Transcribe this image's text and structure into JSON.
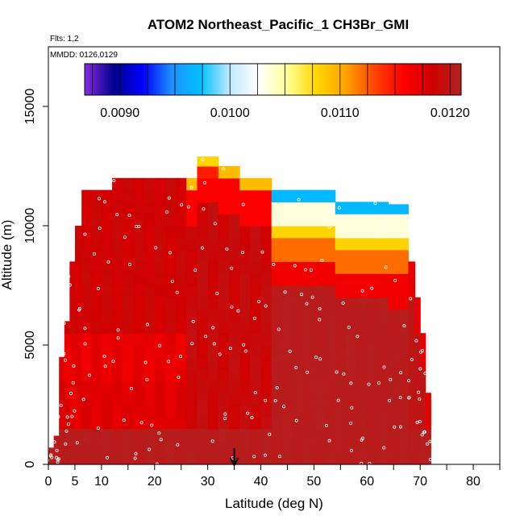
{
  "chart_data": {
    "type": "heatmap",
    "title": "ATOM2 Northeast_Pacific_1 CH3Br_GMI",
    "flights_label": "Flts: 1,2",
    "dates_label": "MMDD: 0126,0129",
    "xlabel": "Latitude (deg N)",
    "ylabel": "Altitude (m)",
    "xlim": [
      0,
      85
    ],
    "ylim": [
      0,
      17500
    ],
    "x_ticks": [
      0,
      5,
      10,
      20,
      30,
      40,
      50,
      60,
      70,
      80
    ],
    "x_minor_ticks": [
      15,
      25,
      35,
      45,
      55,
      65,
      75,
      85
    ],
    "y_ticks": [
      0,
      5000,
      10000,
      15000
    ],
    "colorbar": {
      "range": [
        0.00868,
        0.0121
      ],
      "tick_values": [
        0.009,
        0.01,
        0.011,
        0.012
      ],
      "tick_labels": [
        "0.0090",
        "0.0100",
        "0.0110",
        "0.0120"
      ],
      "colors": [
        "#8a2be2",
        "#00008b",
        "#0000ff",
        "#1e90ff",
        "#00bfff",
        "#bfe9ff",
        "#ffffff",
        "#ffff99",
        "#ffd700",
        "#ffa500",
        "#ff4500",
        "#ff0000",
        "#d00000",
        "#b22222"
      ]
    },
    "marker_latitude": 35,
    "profiles": [
      {
        "lat": 0.5,
        "top": 700,
        "pattern": "A"
      },
      {
        "lat": 1.5,
        "top": 1200,
        "pattern": "A"
      },
      {
        "lat": 2.5,
        "top": 4500,
        "pattern": "A"
      },
      {
        "lat": 3.5,
        "top": 6000,
        "pattern": "A"
      },
      {
        "lat": 4.5,
        "top": 8500,
        "pattern": "A"
      },
      {
        "lat": 5.5,
        "top": 10000,
        "pattern": "A"
      },
      {
        "lat": 7,
        "top": 11500,
        "pattern": "A"
      },
      {
        "lat": 9,
        "top": 11500,
        "pattern": "A"
      },
      {
        "lat": 11,
        "top": 11500,
        "pattern": "A"
      },
      {
        "lat": 13,
        "top": 12000,
        "pattern": "A"
      },
      {
        "lat": 15,
        "top": 12000,
        "pattern": "A"
      },
      {
        "lat": 17,
        "top": 12000,
        "pattern": "A"
      },
      {
        "lat": 19,
        "top": 12000,
        "pattern": "A"
      },
      {
        "lat": 21,
        "top": 12000,
        "pattern": "A"
      },
      {
        "lat": 23,
        "top": 12000,
        "pattern": "A"
      },
      {
        "lat": 25,
        "top": 12000,
        "pattern": "A"
      },
      {
        "lat": 27,
        "top": 12000,
        "pattern": "B"
      },
      {
        "lat": 29,
        "top": 12900,
        "pattern": "B"
      },
      {
        "lat": 31,
        "top": 12900,
        "pattern": "B"
      },
      {
        "lat": 33,
        "top": 12500,
        "pattern": "B"
      },
      {
        "lat": 35,
        "top": 12500,
        "pattern": "B"
      },
      {
        "lat": 37,
        "top": 12000,
        "pattern": "B"
      },
      {
        "lat": 39,
        "top": 12000,
        "pattern": "B"
      },
      {
        "lat": 41,
        "top": 12000,
        "pattern": "B"
      },
      {
        "lat": 43,
        "top": 11500,
        "pattern": "C"
      },
      {
        "lat": 45,
        "top": 11500,
        "pattern": "C"
      },
      {
        "lat": 47,
        "top": 11500,
        "pattern": "C"
      },
      {
        "lat": 49,
        "top": 11500,
        "pattern": "C"
      },
      {
        "lat": 51,
        "top": 11500,
        "pattern": "C"
      },
      {
        "lat": 53,
        "top": 11500,
        "pattern": "C"
      },
      {
        "lat": 55,
        "top": 11000,
        "pattern": "C"
      },
      {
        "lat": 57,
        "top": 11000,
        "pattern": "C"
      },
      {
        "lat": 59,
        "top": 11000,
        "pattern": "C"
      },
      {
        "lat": 61,
        "top": 11000,
        "pattern": "C"
      },
      {
        "lat": 63,
        "top": 11000,
        "pattern": "C"
      },
      {
        "lat": 65,
        "top": 10900,
        "pattern": "C"
      },
      {
        "lat": 67,
        "top": 10900,
        "pattern": "C"
      },
      {
        "lat": 68.5,
        "top": 8500,
        "pattern": "D"
      },
      {
        "lat": 69.5,
        "top": 7000,
        "pattern": "D"
      },
      {
        "lat": 70.5,
        "top": 5500,
        "pattern": "D"
      },
      {
        "lat": 71.5,
        "top": 3000,
        "pattern": "D"
      }
    ]
  }
}
